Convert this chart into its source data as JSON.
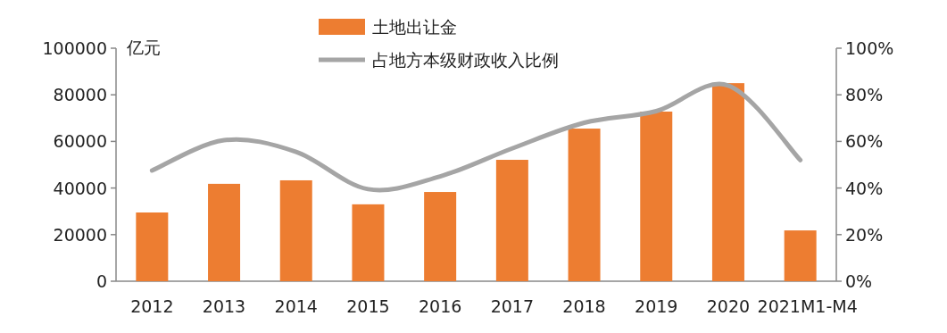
{
  "chart_data": {
    "type": "bar",
    "categories": [
      "2012",
      "2013",
      "2014",
      "2015",
      "2016",
      "2017",
      "2018",
      "2019",
      "2020",
      "2021M1-M4"
    ],
    "ylabel": "亿元",
    "ylim": [
      0,
      100000
    ],
    "yticks": [
      0,
      20000,
      40000,
      60000,
      80000,
      100000
    ],
    "y2lim": [
      0,
      100
    ],
    "y2ticks": [
      {
        "value": 0,
        "label": "0%"
      },
      {
        "value": 20,
        "label": "20%"
      },
      {
        "value": 40,
        "label": "40%"
      },
      {
        "value": 60,
        "label": "60%"
      },
      {
        "value": 80,
        "label": "80%"
      },
      {
        "value": 100,
        "label": "100%"
      }
    ],
    "legend": "top",
    "grid": false,
    "series": [
      {
        "name": "土地出让金",
        "color": "#ed7d31",
        "values": [
          29500,
          41800,
          43300,
          33000,
          38300,
          52100,
          65500,
          72800,
          85000,
          21800
        ]
      },
      {
        "name": "占地方本级财政收入比例",
        "type": "line",
        "axis": "y2",
        "color": "#a5a5a5",
        "values": [
          47.5,
          60.5,
          55.5,
          39.5,
          45,
          57,
          68,
          73,
          84,
          52
        ]
      }
    ]
  }
}
